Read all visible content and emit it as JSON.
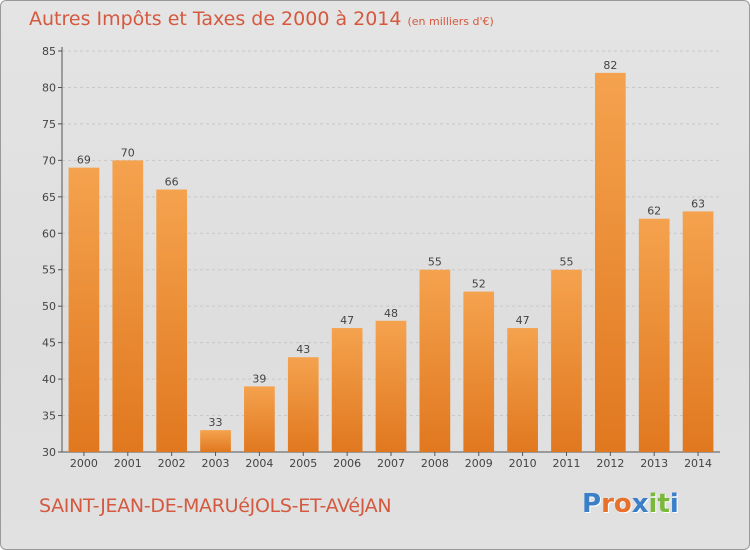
{
  "header": {
    "title": "Autres Impôts et Taxes de 2000 à 2014",
    "subtitle": "(en milliers d'€)"
  },
  "footer": {
    "city": "SAINT-JEAN-DE-MARUéJOLS-ET-AVéJAN",
    "logo_letters": [
      "P",
      "r",
      "o",
      "x",
      "i",
      "t",
      "i"
    ],
    "logo_colors": [
      "#3a7fc8",
      "#e8702a",
      "#e8702a",
      "#3a7fc8",
      "#7ab83c",
      "#7ab83c",
      "#3a7fc8"
    ]
  },
  "chart_data": {
    "type": "bar",
    "categories": [
      "2000",
      "2001",
      "2002",
      "2003",
      "2004",
      "2005",
      "2006",
      "2007",
      "2008",
      "2009",
      "2010",
      "2011",
      "2012",
      "2013",
      "2014"
    ],
    "values": [
      69,
      70,
      66,
      33,
      39,
      43,
      47,
      48,
      55,
      52,
      47,
      55,
      82,
      62,
      63
    ],
    "ylim": [
      30,
      85
    ],
    "yticks": [
      "30",
      "35",
      "40",
      "45",
      "50",
      "55",
      "60",
      "65",
      "70",
      "75",
      "80",
      "85"
    ],
    "grid": true,
    "bar_color_top": "#f5a24e",
    "bar_color_bottom": "#e0781f"
  }
}
